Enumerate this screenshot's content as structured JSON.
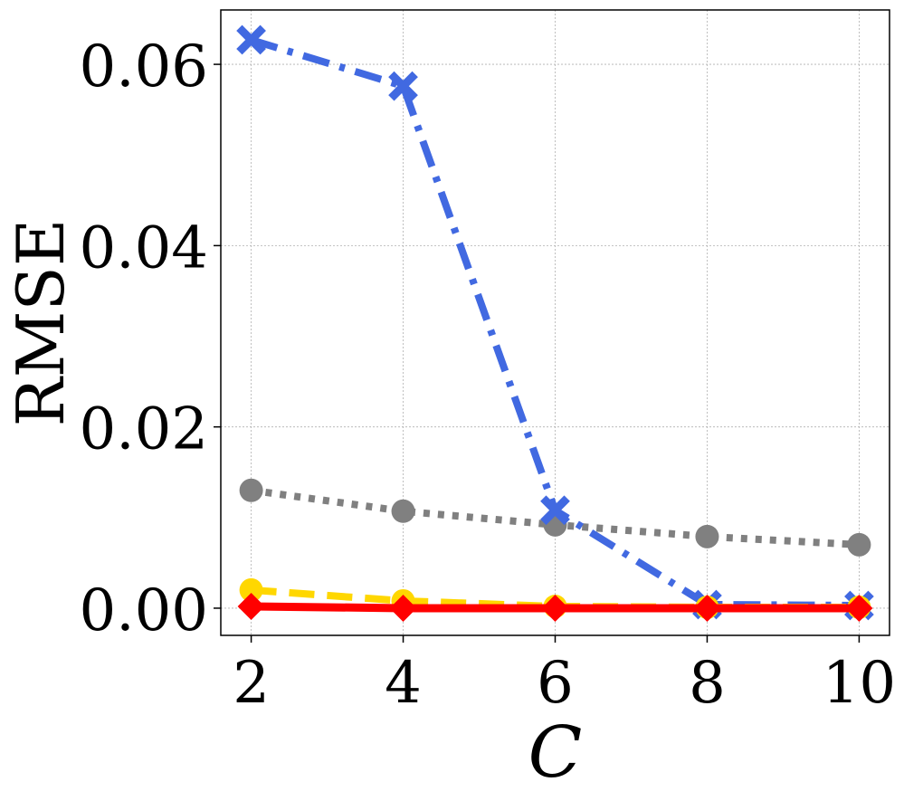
{
  "chart_data": {
    "type": "line",
    "xlabel": "C",
    "ylabel": "RMSE",
    "x": [
      2,
      4,
      6,
      8,
      10
    ],
    "xticks": [
      "2",
      "4",
      "6",
      "8",
      "10"
    ],
    "yticks": [
      "0.00",
      "0.02",
      "0.04",
      "0.06"
    ],
    "xlim": [
      1.6,
      10.4
    ],
    "ylim": [
      -0.003,
      0.066
    ],
    "grid": true,
    "legend": "none",
    "series": [
      {
        "id": "gray-dotted",
        "values": [
          0.013,
          0.0107,
          0.0092,
          0.0079,
          0.007
        ],
        "color": "#808080",
        "line_style": "dotted",
        "marker": "circle"
      },
      {
        "id": "blue-dashdot",
        "values": [
          0.0627,
          0.0576,
          0.0108,
          0.0004,
          0.0003
        ],
        "color": "#4169e1",
        "line_style": "dashdot",
        "marker": "x"
      },
      {
        "id": "gold-dashed",
        "values": [
          0.002,
          0.0008,
          0.0002,
          0.0001,
          0.0001
        ],
        "color": "#ffd700",
        "line_style": "dashed",
        "marker": "circle"
      },
      {
        "id": "red-solid",
        "values": [
          0.0002,
          0.0,
          0.0,
          0.0,
          0.0
        ],
        "color": "#ff0000",
        "line_style": "solid",
        "marker": "diamond"
      }
    ]
  }
}
